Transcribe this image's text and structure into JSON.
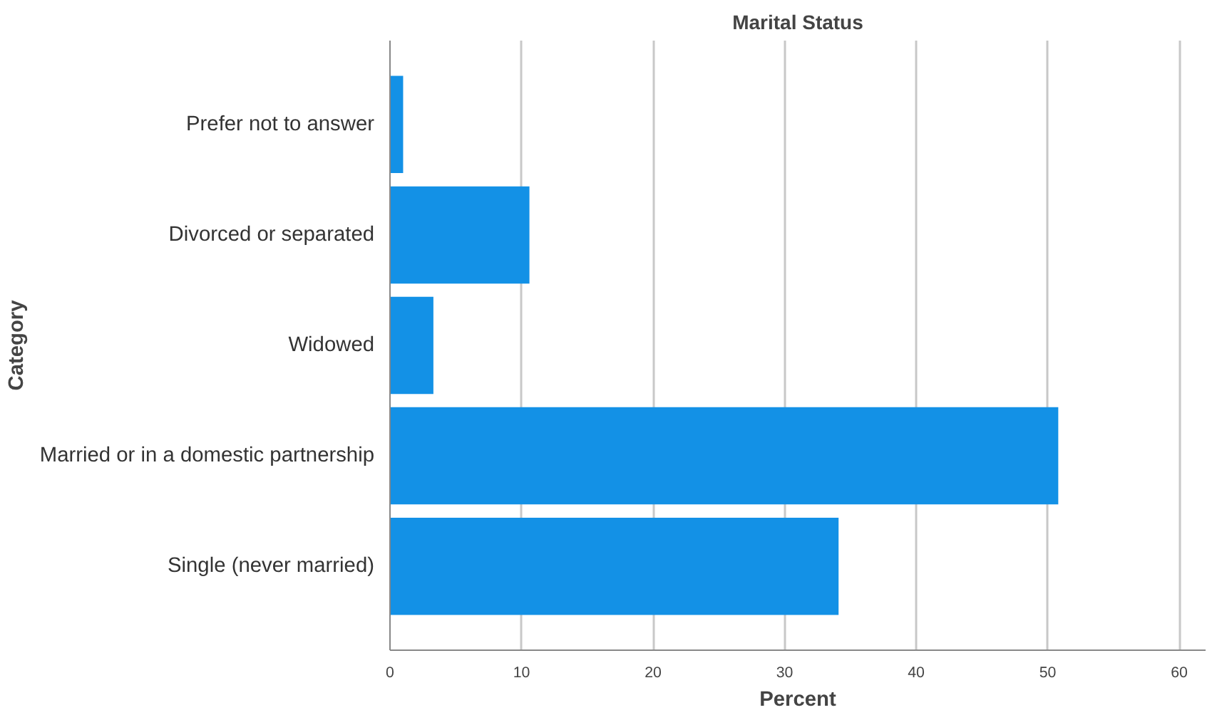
{
  "chart_data": {
    "type": "bar",
    "orientation": "horizontal",
    "title": "Marital Status",
    "xlabel": "Percent",
    "ylabel": "Category",
    "categories": [
      "Prefer not to answer",
      "Divorced or separated",
      "Widowed",
      "Married or in a domestic partnership",
      "Single (never married)"
    ],
    "values": [
      1.0,
      10.6,
      3.3,
      50.8,
      34.1
    ],
    "color": "#1391e6",
    "xlim": [
      0,
      62
    ],
    "xticks": [
      0,
      10,
      20,
      30,
      40,
      50,
      60
    ],
    "grid": "x"
  }
}
